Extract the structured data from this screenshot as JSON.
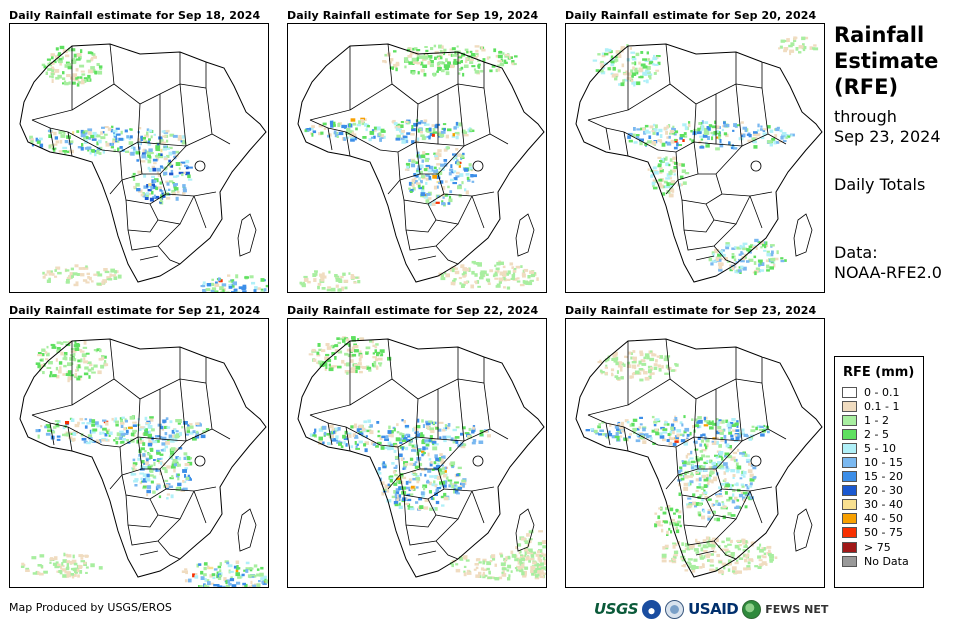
{
  "panels": [
    {
      "title": "Daily Rainfall estimate for Sep 18, 2024"
    },
    {
      "title": "Daily Rainfall estimate for Sep 19, 2024"
    },
    {
      "title": "Daily Rainfall estimate for Sep 20, 2024"
    },
    {
      "title": "Daily Rainfall estimate for Sep 21, 2024"
    },
    {
      "title": "Daily Rainfall estimate for Sep 22, 2024"
    },
    {
      "title": "Daily Rainfall estimate for Sep 23, 2024"
    }
  ],
  "sidebar": {
    "title_line1": "Rainfall",
    "title_line2": "Estimate",
    "title_line3": "(RFE)",
    "through_line1": "through",
    "through_line2": "Sep 23, 2024",
    "period": "Daily Totals",
    "data_line1": "Data:",
    "data_line2": "NOAA-RFE2.0"
  },
  "legend": {
    "title": "RFE (mm)",
    "items": [
      {
        "label": "0 - 0.1",
        "color": "#ffffff"
      },
      {
        "label": "0.1 - 1",
        "color": "#f0dcc0"
      },
      {
        "label": "1 - 2",
        "color": "#a8eea0"
      },
      {
        "label": "2 - 5",
        "color": "#5fe060"
      },
      {
        "label": "5 - 10",
        "color": "#b0f0f8"
      },
      {
        "label": "10 - 15",
        "color": "#7ab8f0"
      },
      {
        "label": "15 - 20",
        "color": "#3c8ee8"
      },
      {
        "label": "20 - 30",
        "color": "#1a58d0"
      },
      {
        "label": "30 - 40",
        "color": "#f8e090"
      },
      {
        "label": "40 - 50",
        "color": "#f8a000"
      },
      {
        "label": "50 - 75",
        "color": "#f83000"
      },
      {
        "label": "> 75",
        "color": "#a01818"
      },
      {
        "label": "No Data",
        "color": "#999999"
      }
    ]
  },
  "credit": "Map Produced by USGS/EROS",
  "logos": {
    "usgs": "USGS",
    "usaid": "USAID",
    "fews": "FEWS NET",
    "noaa_icon": "noaa-logo-icon",
    "commerce_icon": "commerce-seal-icon",
    "fews_icon": "globe-icon"
  }
}
